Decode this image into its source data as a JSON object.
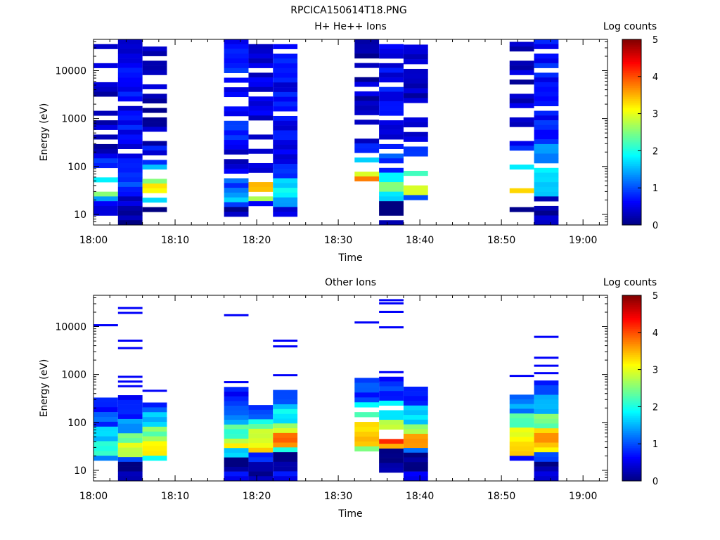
{
  "figure_title": "RPCICA150614T18.PNG",
  "chart_data": [
    {
      "type": "heatmap",
      "title": "H+ He++ Ions",
      "xlabel": "Time",
      "ylabel": "Energy (eV)",
      "xlim": [
        "18:00",
        "19:03"
      ],
      "ylim": [
        6,
        45000
      ],
      "yscale": "log",
      "xticks": [
        "18:00",
        "18:10",
        "18:20",
        "18:30",
        "18:40",
        "18:50",
        "19:00"
      ],
      "yticks": [
        "10",
        "100",
        "1000",
        "10000"
      ],
      "colorbar": {
        "label": "Log counts",
        "range": [
          0,
          5
        ],
        "ticks": [
          "0",
          "1",
          "2",
          "3",
          "4",
          "5"
        ],
        "colormap": [
          "#00007f",
          "#0000ff",
          "#00ffff",
          "#ffff00",
          "#ff0000",
          "#7f0000"
        ]
      },
      "columns": [
        {
          "start": "18:00",
          "end": "18:03",
          "emin": 6,
          "emax": 45000,
          "density": 0.55,
          "bands": [
            [
              8,
              10,
              0.05
            ],
            [
              10,
              18,
              0.5
            ],
            [
              18,
              25,
              1.3
            ],
            [
              25,
              40,
              2.5
            ],
            [
              40,
              60,
              1.8
            ],
            [
              60,
              150,
              0.8
            ],
            [
              150,
              45000,
              0.3
            ]
          ]
        },
        {
          "start": "18:03",
          "end": "18:06",
          "emin": 6,
          "emax": 45000,
          "density": 0.9,
          "bands": [
            [
              6,
              15,
              0.1
            ],
            [
              15,
              40,
              0.5
            ],
            [
              40,
              75,
              0.9
            ],
            [
              75,
              800,
              0.6
            ],
            [
              800,
              45000,
              0.6
            ]
          ]
        },
        {
          "start": "18:06",
          "end": "18:09",
          "emin": 9,
          "emax": 40000,
          "density": 0.55,
          "bands": [
            [
              9,
              15,
              0.1
            ],
            [
              15,
              20,
              1.6
            ],
            [
              20,
              45,
              3.1
            ],
            [
              45,
              70,
              2.4
            ],
            [
              70,
              110,
              1.7
            ],
            [
              110,
              250,
              0.6
            ],
            [
              250,
              40000,
              0.3
            ]
          ]
        },
        {
          "start": "18:16",
          "end": "18:19",
          "emin": 9,
          "emax": 45000,
          "density": 0.85,
          "bands": [
            [
              9,
              15,
              0.2
            ],
            [
              15,
              20,
              0.8
            ],
            [
              20,
              30,
              1.5
            ],
            [
              30,
              60,
              1.0
            ],
            [
              60,
              400,
              0.5
            ],
            [
              400,
              45000,
              0.7
            ]
          ]
        },
        {
          "start": "18:19",
          "end": "18:22",
          "emin": 15,
          "emax": 45000,
          "density": 0.65,
          "bands": [
            [
              15,
              20,
              0.8
            ],
            [
              20,
              30,
              2.8
            ],
            [
              30,
              55,
              3.6
            ],
            [
              55,
              75,
              2.2
            ],
            [
              75,
              300,
              0.4
            ],
            [
              300,
              45000,
              0.5
            ]
          ]
        },
        {
          "start": "18:22",
          "end": "18:25",
          "emin": 9,
          "emax": 45000,
          "density": 0.9,
          "bands": [
            [
              9,
              15,
              0.4
            ],
            [
              15,
              25,
              1.3
            ],
            [
              25,
              40,
              2.0
            ],
            [
              40,
              60,
              1.5
            ],
            [
              60,
              120,
              1.0
            ],
            [
              120,
              45000,
              0.6
            ]
          ]
        },
        {
          "start": "18:32",
          "end": "18:35",
          "emin": 25,
          "emax": 45000,
          "density": 0.5,
          "bands": [
            [
              25,
              30,
              2.8
            ],
            [
              30,
              60,
              3.6
            ],
            [
              60,
              90,
              3.0
            ],
            [
              90,
              150,
              1.7
            ],
            [
              150,
              300,
              0.8
            ],
            [
              300,
              45000,
              0.3
            ]
          ]
        },
        {
          "start": "18:35",
          "end": "18:38",
          "emin": 6,
          "emax": 45000,
          "density": 0.8,
          "bands": [
            [
              6,
              18,
              0.05
            ],
            [
              18,
              30,
              1.6
            ],
            [
              30,
              50,
              2.5
            ],
            [
              50,
              80,
              1.9
            ],
            [
              80,
              200,
              1.0
            ],
            [
              200,
              45000,
              0.6
            ]
          ]
        },
        {
          "start": "18:38",
          "end": "18:41",
          "emin": 20,
          "emax": 35000,
          "density": 0.6,
          "bands": [
            [
              20,
              28,
              0.8
            ],
            [
              28,
              40,
              3.1
            ],
            [
              40,
              70,
              3.4
            ],
            [
              70,
              110,
              2.0
            ],
            [
              110,
              300,
              0.7
            ],
            [
              300,
              35000,
              0.3
            ]
          ]
        },
        {
          "start": "18:51",
          "end": "18:54",
          "emin": 9,
          "emax": 40000,
          "density": 0.55,
          "bands": [
            [
              9,
              15,
              0.1
            ],
            [
              15,
              25,
              1.6
            ],
            [
              25,
              45,
              3.4
            ],
            [
              45,
              80,
              3.1
            ],
            [
              80,
              150,
              1.9
            ],
            [
              150,
              300,
              0.8
            ],
            [
              300,
              40000,
              0.3
            ]
          ]
        },
        {
          "start": "18:54",
          "end": "18:57",
          "emin": 6,
          "emax": 45000,
          "density": 0.9,
          "bands": [
            [
              6,
              25,
              0.2
            ],
            [
              25,
              50,
              1.7
            ],
            [
              50,
              100,
              1.9
            ],
            [
              100,
              300,
              1.2
            ],
            [
              300,
              45000,
              0.7
            ]
          ]
        }
      ]
    },
    {
      "type": "heatmap",
      "title": "Other Ions",
      "xlabel": "Time",
      "ylabel": "Energy (eV)",
      "xlim": [
        "18:00",
        "19:03"
      ],
      "ylim": [
        6,
        45000
      ],
      "yscale": "log",
      "xticks": [
        "18:00",
        "18:10",
        "18:20",
        "18:30",
        "18:40",
        "18:50",
        "19:00"
      ],
      "yticks": [
        "10",
        "100",
        "1000",
        "10000"
      ],
      "colorbar": {
        "label": "Log counts",
        "range": [
          0,
          5
        ],
        "ticks": [
          "0",
          "1",
          "2",
          "3",
          "4",
          "5"
        ],
        "colormap": [
          "#00007f",
          "#0000ff",
          "#00ffff",
          "#ffff00",
          "#ff0000",
          "#7f0000"
        ]
      },
      "columns": [
        {
          "start": "18:00",
          "end": "18:03",
          "emin": 16,
          "emax": 330,
          "density": 1.0,
          "lines": [
            10500
          ],
          "bands": [
            [
              16,
              22,
              1.3
            ],
            [
              22,
              40,
              2.2
            ],
            [
              40,
              80,
              1.7
            ],
            [
              80,
              150,
              1.0
            ],
            [
              150,
              330,
              0.6
            ]
          ]
        },
        {
          "start": "18:03",
          "end": "18:06",
          "emin": 6,
          "emax": 370,
          "density": 0.95,
          "lines": [
            24000,
            19000,
            5000,
            3500,
            880,
            700,
            560
          ],
          "bands": [
            [
              6,
              15,
              0.2
            ],
            [
              15,
              20,
              1.2
            ],
            [
              20,
              35,
              3.0
            ],
            [
              35,
              60,
              2.3
            ],
            [
              60,
              120,
              1.4
            ],
            [
              120,
              370,
              0.8
            ]
          ]
        },
        {
          "start": "18:06",
          "end": "18:09",
          "emin": 16,
          "emax": 260,
          "density": 1.0,
          "lines": [
            450
          ],
          "bands": [
            [
              16,
              22,
              1.9
            ],
            [
              22,
              40,
              3.1
            ],
            [
              40,
              80,
              2.5
            ],
            [
              80,
              150,
              1.7
            ],
            [
              150,
              260,
              0.9
            ]
          ]
        },
        {
          "start": "18:16",
          "end": "18:19",
          "emin": 6,
          "emax": 550,
          "density": 0.95,
          "lines": [
            17000,
            680
          ],
          "bands": [
            [
              6,
              10,
              0.5
            ],
            [
              10,
              20,
              0.0
            ],
            [
              20,
              28,
              1.8
            ],
            [
              28,
              50,
              3.0
            ],
            [
              50,
              90,
              2.3
            ],
            [
              90,
              200,
              1.3
            ],
            [
              200,
              550,
              0.8
            ]
          ]
        },
        {
          "start": "18:19",
          "end": "18:22",
          "emin": 6,
          "emax": 230,
          "density": 0.95,
          "bands": [
            [
              6,
              10,
              0.2
            ],
            [
              10,
              16,
              0.0
            ],
            [
              16,
              22,
              0.9
            ],
            [
              22,
              40,
              3.2
            ],
            [
              40,
              70,
              3.0
            ],
            [
              70,
              120,
              2.1
            ],
            [
              120,
              230,
              1.0
            ]
          ]
        },
        {
          "start": "18:22",
          "end": "18:25",
          "emin": 6,
          "emax": 600,
          "density": 0.95,
          "lines": [
            5000,
            3800,
            950
          ],
          "bands": [
            [
              6,
              10,
              0.7
            ],
            [
              10,
              15,
              0.3
            ],
            [
              15,
              25,
              0.0
            ],
            [
              25,
              32,
              2.2
            ],
            [
              32,
              55,
              3.7
            ],
            [
              55,
              100,
              2.8
            ],
            [
              100,
              220,
              1.8
            ],
            [
              220,
              600,
              0.9
            ]
          ]
        },
        {
          "start": "18:32",
          "end": "18:35",
          "emin": 25,
          "emax": 850,
          "density": 0.95,
          "lines": [
            12000
          ],
          "bands": [
            [
              25,
              32,
              2.6
            ],
            [
              32,
              70,
              3.6
            ],
            [
              70,
              130,
              3.1
            ],
            [
              130,
              250,
              2.0
            ],
            [
              250,
              850,
              0.9
            ]
          ]
        },
        {
          "start": "18:35",
          "end": "18:38",
          "emin": 9,
          "emax": 900,
          "density": 0.95,
          "lines": [
            35000,
            30000,
            20000,
            9500,
            1100
          ],
          "bands": [
            [
              9,
              15,
              0.4
            ],
            [
              15,
              28,
              0.0
            ],
            [
              28,
              40,
              3.3
            ],
            [
              40,
              65,
              4.4
            ],
            [
              65,
              120,
              3.0
            ],
            [
              120,
              260,
              1.8
            ],
            [
              260,
              900,
              0.8
            ]
          ]
        },
        {
          "start": "18:38",
          "end": "18:41",
          "emin": 6,
          "emax": 700,
          "density": 0.95,
          "bands": [
            [
              6,
              10,
              0.5
            ],
            [
              10,
              22,
              0.0
            ],
            [
              22,
              28,
              1.0
            ],
            [
              28,
              55,
              3.6
            ],
            [
              55,
              100,
              2.8
            ],
            [
              100,
              250,
              1.6
            ],
            [
              250,
              700,
              0.7
            ]
          ]
        },
        {
          "start": "18:51",
          "end": "18:54",
          "emin": 16,
          "emax": 380,
          "density": 1.0,
          "lines": [
            920
          ],
          "bands": [
            [
              16,
              22,
              0.9
            ],
            [
              22,
              40,
              3.4
            ],
            [
              40,
              80,
              3.0
            ],
            [
              80,
              150,
              2.2
            ],
            [
              150,
              380,
              1.3
            ]
          ]
        },
        {
          "start": "18:54",
          "end": "18:57",
          "emin": 6,
          "emax": 750,
          "density": 0.95,
          "lines": [
            6000,
            2200,
            1500,
            1050
          ],
          "bands": [
            [
              6,
              10,
              0.6
            ],
            [
              10,
              16,
              0.0
            ],
            [
              16,
              22,
              1.0
            ],
            [
              22,
              40,
              3.2
            ],
            [
              40,
              80,
              3.5
            ],
            [
              80,
              160,
              2.4
            ],
            [
              160,
              350,
              1.5
            ],
            [
              350,
              750,
              0.8
            ]
          ]
        }
      ]
    }
  ]
}
